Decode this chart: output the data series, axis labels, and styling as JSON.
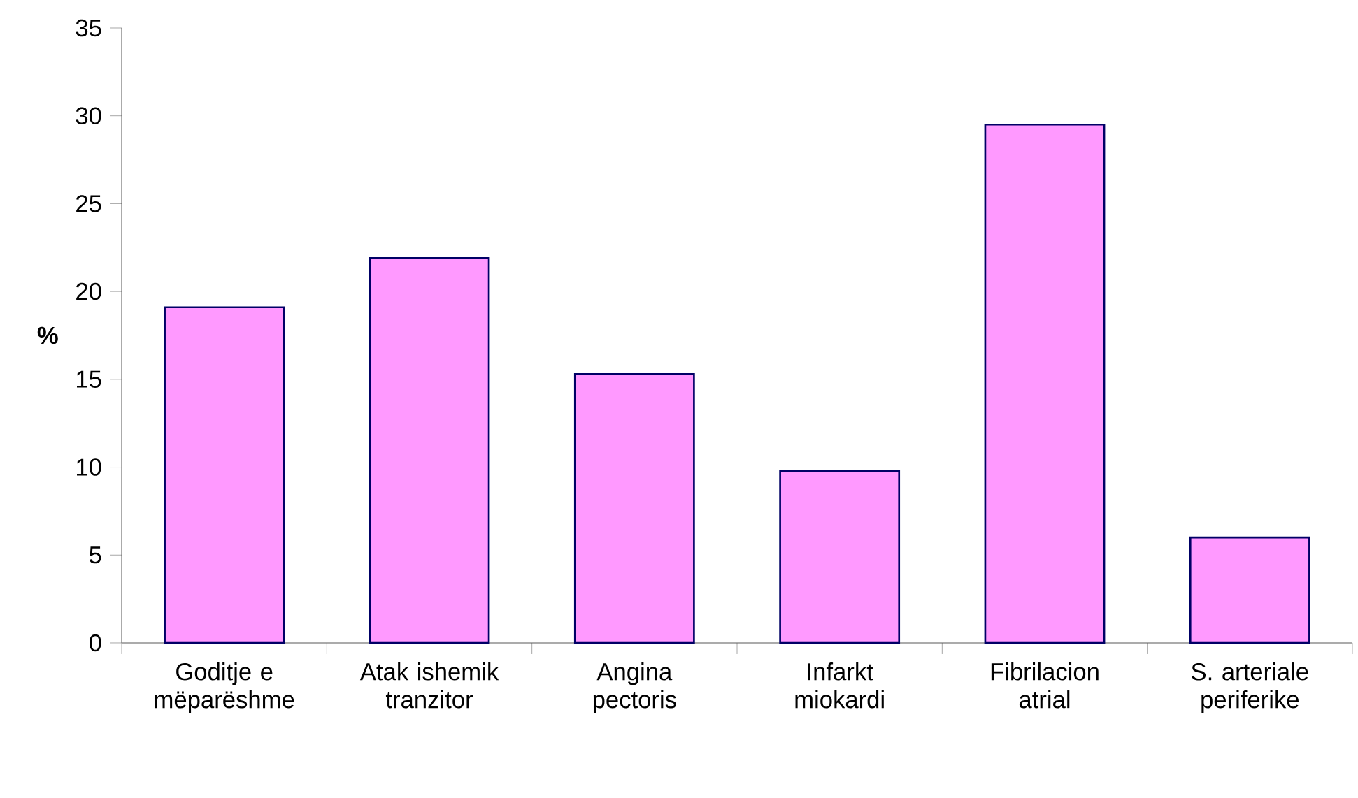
{
  "chart_data": {
    "type": "bar",
    "ylabel": "%",
    "categories": [
      "Goditje e mëparëshme",
      "Atak ishemik tranzitor",
      "Angina pectoris",
      "Infarkt miokardi",
      "Fibrilacion atrial",
      "S. arteriale periferike"
    ],
    "values": [
      19.1,
      21.9,
      15.3,
      9.8,
      29.5,
      6.0
    ],
    "color": "#ff99ff",
    "ylim": [
      0,
      35
    ],
    "yticks": [
      0,
      5,
      10,
      15,
      20,
      25,
      30,
      35
    ]
  }
}
